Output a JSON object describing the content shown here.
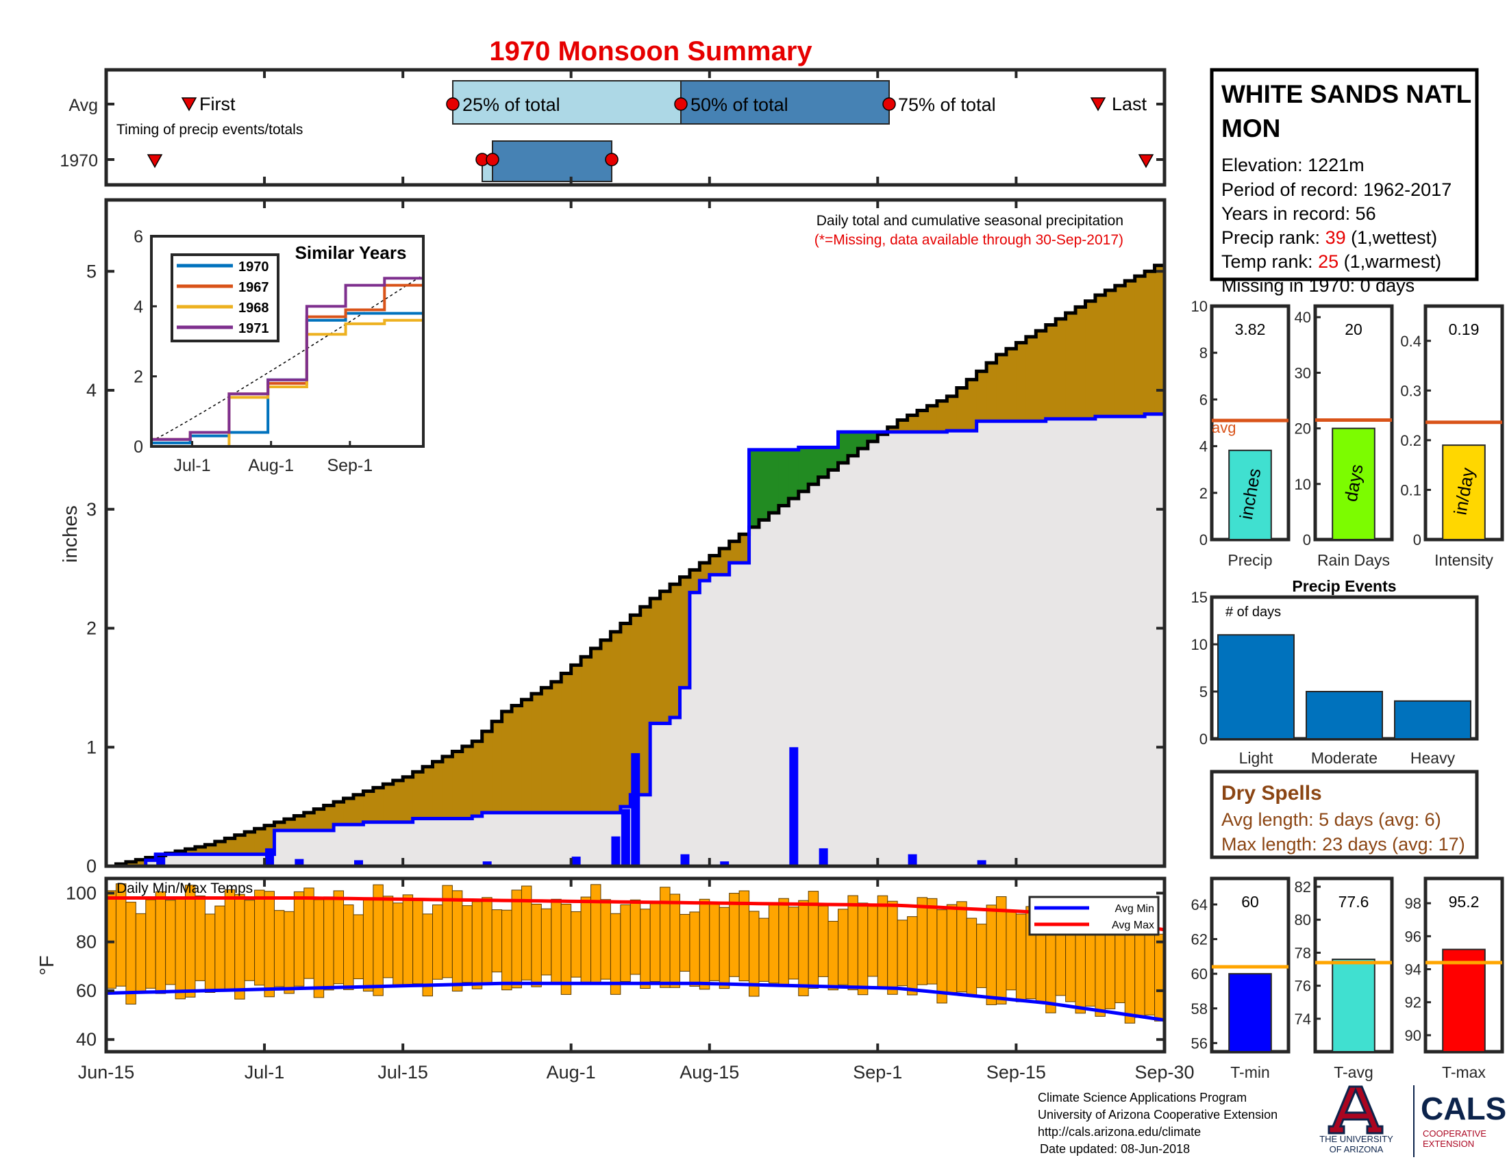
{
  "title": "1970 Monsoon Summary",
  "year": "1970",
  "timing": {
    "row_avg": "Avg",
    "row_year": "1970",
    "note": "Timing of precip events/totals",
    "first_label": "First",
    "last_label": "Last",
    "q25_label": "25% of total",
    "q50_label": "50% of total",
    "q75_label": "75% of total",
    "colors": {
      "q1": "#add8e6",
      "q2": "#4682b4",
      "marker": "#e60000"
    }
  },
  "station": {
    "name_line1": "WHITE SANDS NATL",
    "name_line2": "MON",
    "elevation": "Elevation: 1221m",
    "period": "Period of record: 1962-2017",
    "years": "Years in record: 56",
    "precip_rank_prefix": "Precip rank: ",
    "precip_rank_value": "39",
    "precip_rank_suffix": " (1,wettest)",
    "temp_rank_prefix": "Temp rank: ",
    "temp_rank_value": "25",
    "temp_rank_suffix": " (1,warmest)",
    "missing": "Missing in 1970: 0 days"
  },
  "main_chart": {
    "ylabel": "inches",
    "legend_line1": "Daily total and cumulative seasonal precipitation",
    "legend_line2": "(*=Missing, data available through 30-Sep-2017)",
    "x_ticks": [
      "Jun-15",
      "Jul-1",
      "Jul-15",
      "Aug-1",
      "Aug-15",
      "Sep-1",
      "Sep-15",
      "Sep-30"
    ],
    "y_ticks": [
      "0",
      "1",
      "2",
      "3",
      "4",
      "5"
    ],
    "colors": {
      "above_avg": "#228b22",
      "below_avg": "#b8860b",
      "fill": "#e8e6e6",
      "obs_line": "#0000ff",
      "avg_line": "#000000",
      "daily_bar": "#0000ff"
    }
  },
  "inset": {
    "title": "Similar Years",
    "x_ticks": [
      "Jul-1",
      "Aug-1",
      "Sep-1"
    ],
    "y_ticks": [
      "0",
      "2",
      "4",
      "6"
    ],
    "legend": [
      {
        "name": "1970",
        "color": "#0072bd"
      },
      {
        "name": "1967",
        "color": "#d95319"
      },
      {
        "name": "1968",
        "color": "#edb120"
      },
      {
        "name": "1971",
        "color": "#7e2f8e"
      }
    ]
  },
  "temp_chart": {
    "label": "Daily Min/Max Temps",
    "ylabel": "°F",
    "y_ticks": [
      "40",
      "60",
      "80",
      "100"
    ],
    "legend_min": "Avg Min",
    "legend_max": "Avg Max",
    "colors": {
      "bar": "#ffa500",
      "min_line": "#0000ff",
      "max_line": "#ff0000"
    }
  },
  "summary_bars": {
    "precip": {
      "label": "Precip",
      "value_text": "3.82",
      "unit": "inches",
      "y_ticks": [
        "0",
        "2",
        "4",
        "6",
        "8",
        "10"
      ],
      "avg_label": "avg",
      "color": "#40e0d0"
    },
    "rain_days": {
      "label": "Rain Days",
      "value_text": "20",
      "unit": "days",
      "y_ticks": [
        "0",
        "10",
        "20",
        "30",
        "40"
      ],
      "color": "#7cfc00"
    },
    "intensity": {
      "label": "Intensity",
      "value_text": "0.19",
      "unit": "in/day",
      "y_ticks": [
        "0",
        "0.1",
        "0.2",
        "0.3",
        "0.4"
      ],
      "color": "#ffd700"
    }
  },
  "events": {
    "title": "Precip Events",
    "ylabel": "# of days",
    "categories": [
      "Light",
      "Moderate",
      "Heavy"
    ],
    "y_ticks": [
      "0",
      "5",
      "10",
      "15"
    ],
    "color": "#0072bd"
  },
  "dry_spells": {
    "title": "Dry Spells",
    "avg_length": "Avg length: 5 days (avg: 6)",
    "max_length": "Max length: 23 days (avg: 17)",
    "color": "#8b4513"
  },
  "temp_summary": {
    "tmin": {
      "label": "T-min",
      "value_text": "60",
      "y_ticks": [
        "56",
        "58",
        "60",
        "62",
        "64"
      ],
      "color": "#0000ff"
    },
    "tavg": {
      "label": "T-avg",
      "value_text": "77.6",
      "y_ticks": [
        "74",
        "76",
        "78",
        "80",
        "82"
      ],
      "color": "#40e0d0"
    },
    "tmax": {
      "label": "T-max",
      "value_text": "95.2",
      "y_ticks": [
        "90",
        "92",
        "94",
        "96",
        "98"
      ],
      "color": "#ff0000"
    },
    "avg_color": "#ffa500"
  },
  "footer": {
    "line1": "Climate Science Applications Program",
    "line2": "University of Arizona Cooperative Extension",
    "line3": "http://cals.arizona.edu/climate",
    "line4": "Date updated: 08-Jun-2018",
    "logo_ua_line1": "THE UNIVERSITY",
    "logo_ua_line2": "OF ARIZONA",
    "logo_cals": "CALS",
    "logo_coop1": "COOPERATIVE",
    "logo_coop2": "EXTENSION"
  },
  "chart_data": [
    {
      "type": "line",
      "title": "Daily total and cumulative seasonal precipitation",
      "x_unit": "day of season (Jun-15 = 0, Sep-30 = 107)",
      "ylabel": "inches",
      "ylim": [
        0,
        5.6
      ],
      "xlim": [
        0,
        107
      ],
      "series": [
        {
          "name": "observed_cumulative",
          "x": [
            0,
            4,
            5,
            16,
            16.5,
            23,
            26,
            31,
            36,
            37,
            38,
            47,
            52,
            53,
            55,
            57,
            58,
            59,
            60,
            61,
            63,
            65,
            70,
            73,
            74,
            75,
            85,
            88,
            95,
            100,
            105,
            107
          ],
          "values": [
            0,
            0.05,
            0.1,
            0.1,
            0.3,
            0.35,
            0.37,
            0.4,
            0.4,
            0.42,
            0.45,
            0.45,
            0.5,
            0.6,
            1.2,
            1.25,
            1.5,
            2.3,
            2.4,
            2.45,
            2.55,
            3.5,
            3.52,
            3.52,
            3.65,
            3.65,
            3.66,
            3.74,
            3.76,
            3.78,
            3.8,
            3.82
          ]
        },
        {
          "name": "average_cumulative",
          "x": [
            0,
            10,
            20,
            30,
            37,
            40,
            45,
            50,
            55,
            60,
            65,
            70,
            75,
            80,
            85,
            90,
            95,
            100,
            105,
            107
          ],
          "values": [
            0,
            0.18,
            0.45,
            0.75,
            1.05,
            1.3,
            1.55,
            1.9,
            2.25,
            2.55,
            2.85,
            3.15,
            3.45,
            3.75,
            3.95,
            4.3,
            4.55,
            4.8,
            5.0,
            5.1
          ]
        },
        {
          "name": "daily_total",
          "x": [
            5,
            16,
            19,
            25,
            38,
            47,
            51,
            52,
            53,
            58,
            62,
            69,
            72,
            81,
            88
          ],
          "values": [
            0.1,
            0.15,
            0.06,
            0.05,
            0.04,
            0.08,
            0.25,
            0.48,
            0.95,
            0.1,
            0.04,
            1.0,
            0.15,
            0.1,
            0.05
          ]
        }
      ]
    },
    {
      "type": "line",
      "title": "Similar Years",
      "ylim": [
        0,
        6
      ],
      "series": [
        {
          "name": "1970",
          "values": [
            0.1,
            0.3,
            0.4,
            1.9,
            3.6,
            3.8,
            3.8
          ]
        },
        {
          "name": "1967",
          "values": [
            0.2,
            0.4,
            1.5,
            1.8,
            3.7,
            3.9,
            4.6
          ]
        },
        {
          "name": "1968",
          "values": [
            0,
            0,
            1.4,
            1.7,
            3.2,
            3.5,
            3.6
          ]
        },
        {
          "name": "1971",
          "values": [
            0.2,
            0.4,
            1.5,
            1.9,
            4.0,
            4.6,
            4.8
          ]
        }
      ]
    },
    {
      "type": "bar",
      "title": "Daily Min/Max Temps",
      "ylabel": "°F",
      "ylim": [
        35,
        106
      ],
      "series": [
        {
          "name": "Avg Min",
          "x": [
            0,
            20,
            40,
            60,
            80,
            95,
            107
          ],
          "values": [
            59,
            61,
            63,
            63,
            61,
            55,
            48
          ]
        },
        {
          "name": "Avg Max",
          "x": [
            0,
            20,
            40,
            60,
            80,
            95,
            107
          ],
          "values": [
            98,
            98,
            97,
            96,
            95,
            92,
            85
          ]
        }
      ]
    },
    {
      "type": "bar",
      "categories": [
        "Precip"
      ],
      "values": [
        3.82
      ],
      "avg": 5.1,
      "ylim": [
        0,
        10
      ]
    },
    {
      "type": "bar",
      "categories": [
        "Rain Days"
      ],
      "values": [
        20
      ],
      "avg": 21.5,
      "ylim": [
        0,
        42
      ]
    },
    {
      "type": "bar",
      "categories": [
        "Intensity"
      ],
      "values": [
        0.19
      ],
      "avg": 0.236,
      "ylim": [
        0,
        0.47
      ]
    },
    {
      "type": "bar",
      "title": "Precip Events",
      "categories": [
        "Light",
        "Moderate",
        "Heavy"
      ],
      "values": [
        11,
        5,
        4
      ],
      "ylim": [
        0,
        15
      ]
    },
    {
      "type": "bar",
      "categories": [
        "T-min"
      ],
      "values": [
        60
      ],
      "avg": 60.4,
      "ylim": [
        55.5,
        65.5
      ]
    },
    {
      "type": "bar",
      "categories": [
        "T-avg"
      ],
      "values": [
        77.6
      ],
      "avg": 77.4,
      "ylim": [
        72,
        82.5
      ]
    },
    {
      "type": "bar",
      "categories": [
        "T-max"
      ],
      "values": [
        95.2
      ],
      "avg": 94.4,
      "ylim": [
        89,
        99.5
      ]
    }
  ]
}
